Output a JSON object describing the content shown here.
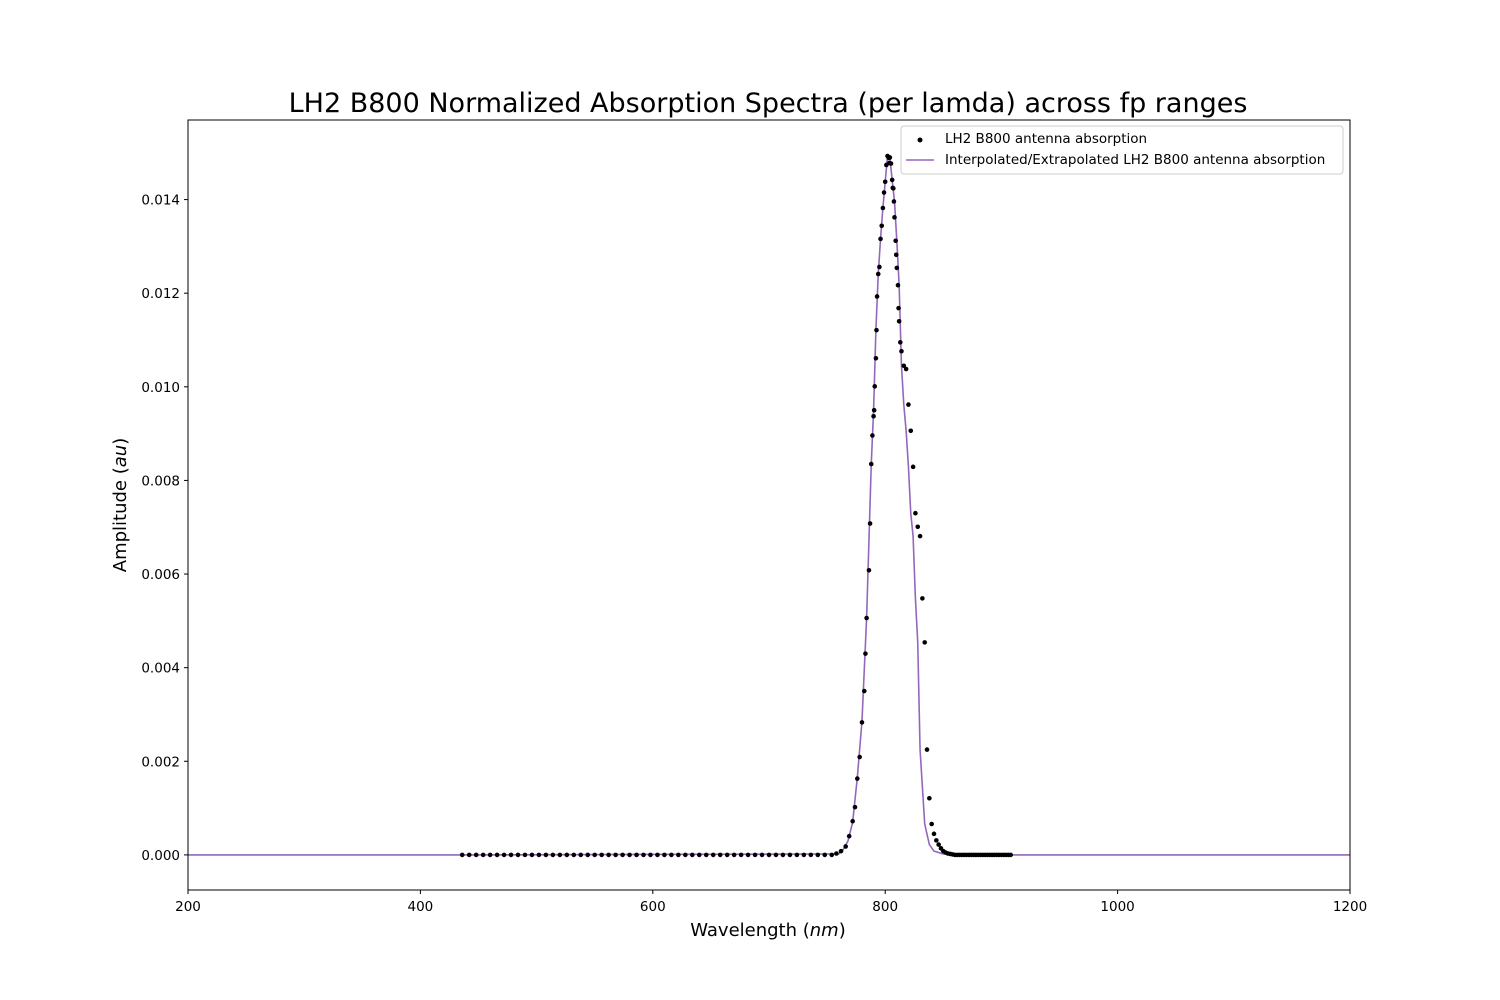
{
  "chart_data": {
    "type": "scatter",
    "title": "LH2 B800 Normalized Absorption Spectra (per lamda) across fp ranges",
    "xlabel": "Wavelength",
    "xlabel_unit": "nm",
    "ylabel": "Amplitude",
    "ylabel_unit": "au",
    "xlim": [
      200,
      1200
    ],
    "ylim": [
      -0.00075,
      0.0157
    ],
    "xticks": [
      "200",
      "400",
      "600",
      "800",
      "1000",
      "1200"
    ],
    "yticks": [
      "0.000",
      "0.002",
      "0.004",
      "0.006",
      "0.008",
      "0.010",
      "0.012",
      "0.014"
    ],
    "grid": false,
    "legend_position": "top-right",
    "colors": {
      "points": "#000000",
      "line": "#9467bd"
    },
    "series": [
      {
        "name": "LH2 B800 antenna absorption",
        "kind": "points",
        "x": [
          436,
          442,
          448,
          454,
          460,
          466,
          472,
          478,
          484,
          490,
          496,
          502,
          508,
          514,
          520,
          526,
          532,
          538,
          544,
          550,
          556,
          562,
          568,
          574,
          580,
          586,
          592,
          598,
          604,
          610,
          616,
          622,
          628,
          634,
          640,
          646,
          652,
          658,
          664,
          670,
          676,
          682,
          688,
          694,
          700,
          706,
          712,
          718,
          724,
          730,
          736,
          742,
          748,
          754,
          758,
          762,
          766,
          769,
          772,
          774,
          776,
          778,
          780,
          782,
          783,
          784,
          786,
          787,
          788,
          789,
          790,
          790.5,
          791,
          792,
          792.5,
          793,
          794,
          795,
          796,
          797,
          798,
          799,
          800,
          801,
          802,
          803,
          803.5,
          804,
          805,
          806,
          806.5,
          807,
          807.5,
          808,
          809,
          809.5,
          810,
          811,
          811.5,
          812,
          813,
          814,
          816,
          818,
          820,
          822,
          824,
          826,
          828,
          830,
          832,
          834,
          836,
          838,
          840,
          842,
          844,
          846,
          848,
          850,
          852,
          854,
          856,
          858,
          860,
          862,
          864,
          866,
          868,
          870,
          872,
          874,
          876,
          878,
          880,
          882,
          884,
          886,
          888,
          890,
          892,
          894,
          896,
          898,
          900,
          902,
          904,
          906,
          908
        ],
        "y": [
          0.0,
          0.0,
          0.0,
          0.0,
          0.0,
          0.0,
          0.0,
          0.0,
          0.0,
          0.0,
          0.0,
          0.0,
          0.0,
          0.0,
          0.0,
          0.0,
          0.0,
          0.0,
          0.0,
          0.0,
          0.0,
          0.0,
          0.0,
          0.0,
          0.0,
          0.0,
          0.0,
          0.0,
          0.0,
          0.0,
          0.0,
          0.0,
          0.0,
          0.0,
          0.0,
          0.0,
          0.0,
          0.0,
          0.0,
          0.0,
          0.0,
          0.0,
          0.0,
          0.0,
          0.0,
          0.0,
          0.0,
          0.0,
          0.0,
          0.0,
          0.0,
          0.0,
          0.0,
          0.0,
          3e-05,
          8e-05,
          0.00018,
          0.0004,
          0.00072,
          0.00102,
          0.00163,
          0.00209,
          0.00283,
          0.0035,
          0.0043,
          0.00506,
          0.00608,
          0.00708,
          0.00835,
          0.00896,
          0.00937,
          0.0095,
          0.01001,
          0.01061,
          0.01121,
          0.01193,
          0.01241,
          0.01256,
          0.01316,
          0.01344,
          0.01382,
          0.01415,
          0.01438,
          0.01474,
          0.01493,
          0.01489,
          0.01478,
          0.0149,
          0.01477,
          0.01442,
          0.01425,
          0.01424,
          0.01396,
          0.01362,
          0.01312,
          0.01282,
          0.01254,
          0.01217,
          0.01168,
          0.0114,
          0.01095,
          0.01076,
          0.01045,
          0.01038,
          0.00962,
          0.00906,
          0.00829,
          0.0073,
          0.00701,
          0.00681,
          0.00548,
          0.00454,
          0.00225,
          0.00121,
          0.00066,
          0.00045,
          0.00031,
          0.00022,
          0.00014,
          8e-05,
          5e-05,
          3e-05,
          2e-05,
          1e-05,
          0.0,
          0.0,
          0.0,
          0.0,
          0.0,
          0.0,
          0.0,
          0.0,
          0.0,
          0.0,
          0.0,
          0.0,
          0.0,
          0.0,
          0.0,
          0.0,
          0.0,
          0.0,
          0.0,
          0.0,
          0.0,
          0.0,
          0.0,
          0.0,
          0.0
        ]
      },
      {
        "name": "Interpolated/Extrapolated LH2 B800 antenna absorption",
        "kind": "line",
        "x": [
          200,
          436,
          760,
          764,
          768,
          772,
          776,
          780,
          784,
          788,
          790,
          792,
          794,
          796,
          798,
          800,
          802,
          804,
          806,
          808,
          810,
          812,
          814,
          816,
          818,
          820,
          822,
          824,
          826,
          828,
          830,
          834,
          838,
          842,
          850,
          908,
          1200
        ],
        "y": [
          0.0,
          0.0,
          2e-05,
          0.00012,
          0.0003,
          0.0007,
          0.00165,
          0.00285,
          0.00506,
          0.00835,
          0.0095,
          0.01121,
          0.01241,
          0.01316,
          0.01382,
          0.01438,
          0.01493,
          0.0149,
          0.01442,
          0.01396,
          0.01312,
          0.01217,
          0.01045,
          0.00962,
          0.00906,
          0.00829,
          0.0073,
          0.00681,
          0.00548,
          0.00454,
          0.00225,
          0.00066,
          0.00022,
          8e-05,
          2e-05,
          0.0,
          0.0
        ]
      }
    ]
  }
}
